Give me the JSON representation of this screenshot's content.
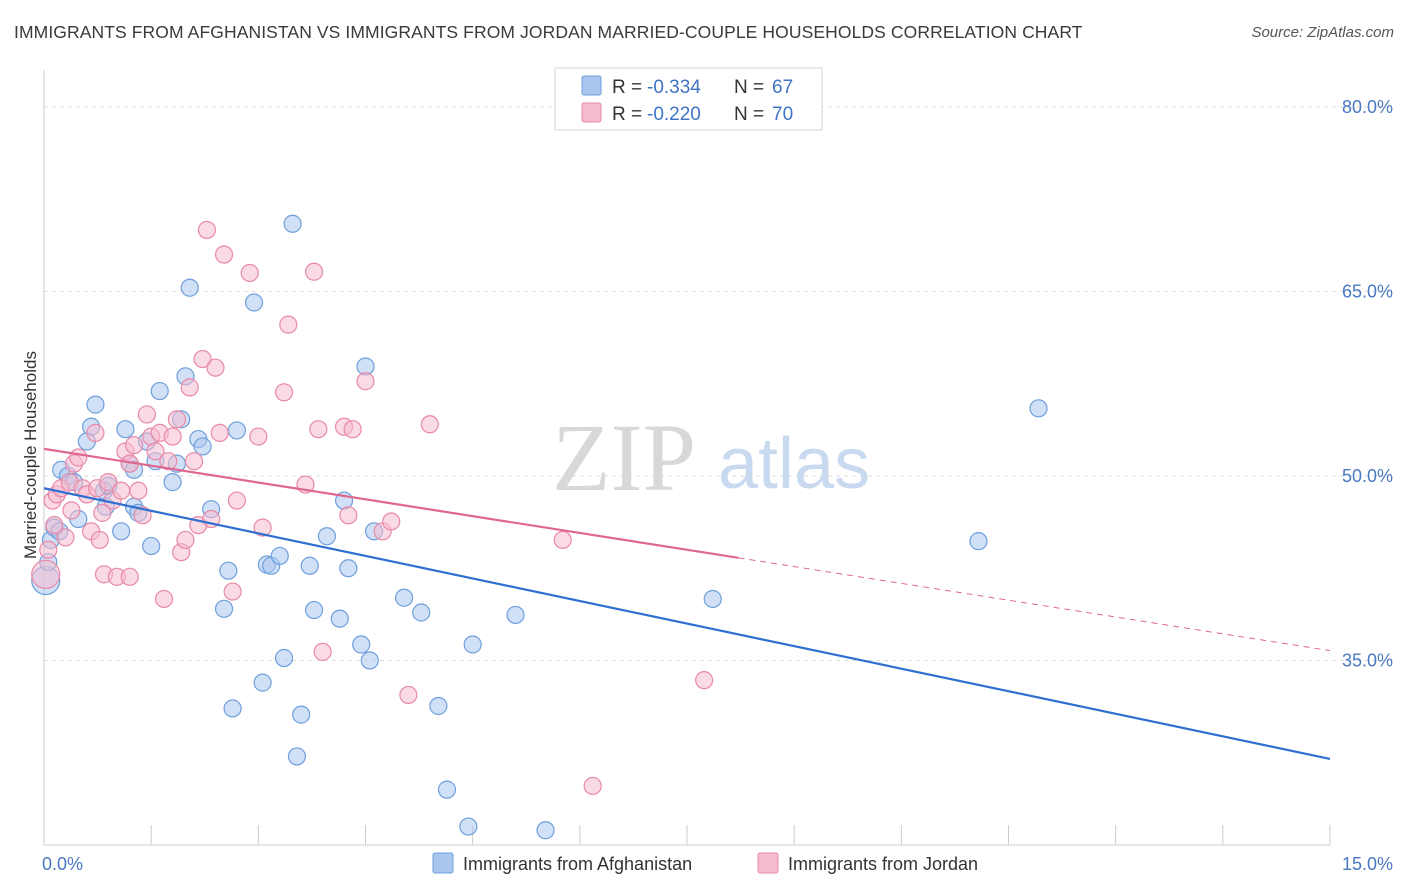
{
  "title": "IMMIGRANTS FROM AFGHANISTAN VS IMMIGRANTS FROM JORDAN MARRIED-COUPLE HOUSEHOLDS CORRELATION CHART",
  "source": "Source: ZipAtlas.com",
  "watermark": {
    "zip": "ZIP",
    "atlas": "atlas"
  },
  "colors": {
    "afghanistan_fill": "#a9c7ee",
    "afghanistan_stroke": "#6f9fdc",
    "afghanistan_line": "#2f6fd0",
    "jordan_fill": "#f6bccd",
    "jordan_stroke": "#e889a8",
    "jordan_line": "#e06890",
    "tick_label": "#4a78c2",
    "grid": "#dddddd"
  },
  "legend": {
    "rows": [
      {
        "r_label": "R =",
        "r_value": "-0.334",
        "n_label": "N =",
        "n_value": "67"
      },
      {
        "r_label": "R =",
        "r_value": "-0.220",
        "n_label": "N =",
        "n_value": "70"
      }
    ]
  },
  "chart_data": {
    "type": "scatter",
    "title": "IMMIGRANTS FROM AFGHANISTAN VS IMMIGRANTS FROM JORDAN MARRIED-COUPLE HOUSEHOLDS CORRELATION CHART",
    "xlabel": "",
    "ylabel": "Married-couple Households",
    "xlim": [
      0,
      15
    ],
    "ylim": [
      20,
      83
    ],
    "x_tick_labels": [
      {
        "value": 0,
        "label": "0.0%"
      },
      {
        "value": 15,
        "label": "15.0%"
      }
    ],
    "y_tick_labels": [
      {
        "value": 80,
        "label": "80.0%"
      },
      {
        "value": 65,
        "label": "65.0%"
      },
      {
        "value": 50,
        "label": "50.0%"
      },
      {
        "value": 35,
        "label": "35.0%"
      }
    ],
    "legend_position": "top-center",
    "series": [
      {
        "name": "Immigrants from Afghanistan",
        "r": -0.334,
        "n": 67,
        "trend": {
          "x0": 0,
          "y0": 49.0,
          "x1": 15,
          "y1": 27.0,
          "solid_until": 15
        },
        "points": [
          [
            0.02,
            41.5
          ],
          [
            0.08,
            44.8
          ],
          [
            0.12,
            45.8
          ],
          [
            0.18,
            45.5
          ],
          [
            0.2,
            50.5
          ],
          [
            0.28,
            50.0
          ],
          [
            0.35,
            49.5
          ],
          [
            0.4,
            46.5
          ],
          [
            0.5,
            52.8
          ],
          [
            0.55,
            54.0
          ],
          [
            0.6,
            55.8
          ],
          [
            0.7,
            48.8
          ],
          [
            0.72,
            47.5
          ],
          [
            0.75,
            49.2
          ],
          [
            0.9,
            45.5
          ],
          [
            0.95,
            53.8
          ],
          [
            1.0,
            51.0
          ],
          [
            1.05,
            50.5
          ],
          [
            1.05,
            47.5
          ],
          [
            1.1,
            47.0
          ],
          [
            1.2,
            52.8
          ],
          [
            1.25,
            44.3
          ],
          [
            1.3,
            51.2
          ],
          [
            1.35,
            56.9
          ],
          [
            1.5,
            49.5
          ],
          [
            1.55,
            51.0
          ],
          [
            1.6,
            54.6
          ],
          [
            1.65,
            58.1
          ],
          [
            1.7,
            65.3
          ],
          [
            1.8,
            53.0
          ],
          [
            1.85,
            52.4
          ],
          [
            1.95,
            47.3
          ],
          [
            2.1,
            39.2
          ],
          [
            2.15,
            42.3
          ],
          [
            2.2,
            31.1
          ],
          [
            2.25,
            53.7
          ],
          [
            2.45,
            64.1
          ],
          [
            2.55,
            33.2
          ],
          [
            2.6,
            42.8
          ],
          [
            2.65,
            42.7
          ],
          [
            2.75,
            43.5
          ],
          [
            2.8,
            35.2
          ],
          [
            2.9,
            70.5
          ],
          [
            2.95,
            27.2
          ],
          [
            3.0,
            30.6
          ],
          [
            3.1,
            42.7
          ],
          [
            3.15,
            39.1
          ],
          [
            3.3,
            45.1
          ],
          [
            3.45,
            38.4
          ],
          [
            3.5,
            48.0
          ],
          [
            3.55,
            42.5
          ],
          [
            3.7,
            36.3
          ],
          [
            3.75,
            58.9
          ],
          [
            3.8,
            35.0
          ],
          [
            3.85,
            45.5
          ],
          [
            4.2,
            40.1
          ],
          [
            4.4,
            38.9
          ],
          [
            4.6,
            31.3
          ],
          [
            4.7,
            24.5
          ],
          [
            4.95,
            21.5
          ],
          [
            5.0,
            36.3
          ],
          [
            5.5,
            38.7
          ],
          [
            5.85,
            21.2
          ],
          [
            7.8,
            40.0
          ],
          [
            10.9,
            44.7
          ],
          [
            11.6,
            55.5
          ],
          [
            0.05,
            43.0
          ]
        ]
      },
      {
        "name": "Immigrants from Jordan",
        "r": -0.22,
        "n": 70,
        "trend": {
          "x0": 0,
          "y0": 52.2,
          "x1": 15,
          "y1": 35.8,
          "solid_until": 8.1
        },
        "points": [
          [
            0.02,
            42.0
          ],
          [
            0.05,
            44.0
          ],
          [
            0.1,
            48.0
          ],
          [
            0.15,
            48.5
          ],
          [
            0.2,
            49.0
          ],
          [
            0.3,
            49.5
          ],
          [
            0.35,
            51.0
          ],
          [
            0.4,
            51.5
          ],
          [
            0.45,
            49.0
          ],
          [
            0.5,
            48.5
          ],
          [
            0.55,
            45.5
          ],
          [
            0.6,
            53.5
          ],
          [
            0.62,
            49.0
          ],
          [
            0.65,
            44.8
          ],
          [
            0.7,
            42.0
          ],
          [
            0.75,
            49.5
          ],
          [
            0.8,
            48.0
          ],
          [
            0.85,
            41.8
          ],
          [
            0.9,
            48.8
          ],
          [
            0.95,
            52.0
          ],
          [
            1.0,
            51.0
          ],
          [
            1.05,
            52.5
          ],
          [
            1.1,
            48.8
          ],
          [
            1.15,
            46.8
          ],
          [
            1.2,
            55.0
          ],
          [
            1.25,
            53.2
          ],
          [
            1.3,
            52.0
          ],
          [
            1.35,
            53.5
          ],
          [
            1.4,
            40.0
          ],
          [
            1.45,
            51.2
          ],
          [
            1.5,
            53.2
          ],
          [
            1.55,
            54.6
          ],
          [
            1.6,
            43.8
          ],
          [
            1.65,
            44.8
          ],
          [
            1.7,
            57.2
          ],
          [
            1.75,
            51.2
          ],
          [
            1.8,
            46.0
          ],
          [
            1.85,
            59.5
          ],
          [
            1.9,
            70.0
          ],
          [
            1.95,
            46.5
          ],
          [
            2.0,
            58.8
          ],
          [
            2.05,
            53.5
          ],
          [
            2.1,
            68.0
          ],
          [
            2.2,
            40.6
          ],
          [
            2.25,
            48.0
          ],
          [
            2.4,
            66.5
          ],
          [
            2.5,
            53.2
          ],
          [
            2.55,
            45.8
          ],
          [
            2.8,
            56.8
          ],
          [
            2.85,
            62.3
          ],
          [
            3.05,
            49.3
          ],
          [
            3.15,
            66.6
          ],
          [
            3.2,
            53.8
          ],
          [
            3.25,
            35.7
          ],
          [
            3.5,
            54.0
          ],
          [
            3.55,
            46.8
          ],
          [
            3.6,
            53.8
          ],
          [
            3.75,
            57.7
          ],
          [
            3.95,
            45.5
          ],
          [
            4.05,
            46.3
          ],
          [
            4.25,
            32.2
          ],
          [
            4.5,
            54.2
          ],
          [
            6.05,
            44.8
          ],
          [
            6.4,
            24.8
          ],
          [
            7.7,
            33.4
          ],
          [
            0.12,
            46.0
          ],
          [
            0.25,
            45.0
          ],
          [
            0.32,
            47.2
          ],
          [
            0.68,
            47.0
          ],
          [
            1.0,
            41.8
          ]
        ]
      }
    ]
  }
}
